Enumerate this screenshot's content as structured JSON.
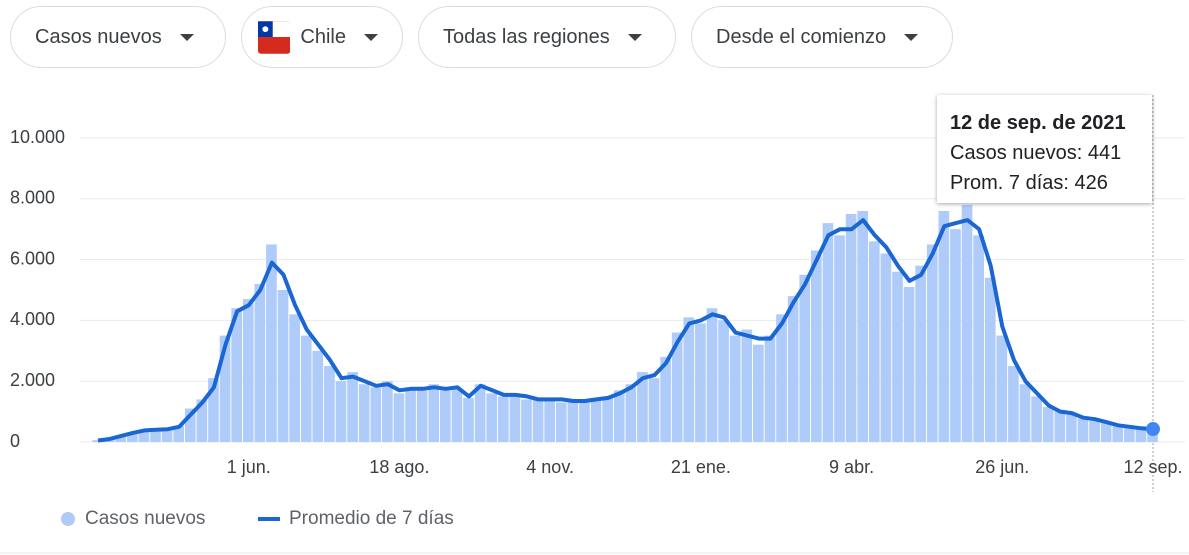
{
  "controls": [
    "Casos nuevos",
    "Chile",
    "Todas las regiones",
    "Desde el comienzo"
  ],
  "chart_data": {
    "type": "bar+line",
    "categories": [
      null,
      null,
      null,
      null,
      null,
      null,
      null,
      null,
      null,
      null,
      null,
      null,
      null,
      "1 jun.",
      null,
      null,
      null,
      null,
      null,
      null,
      null,
      null,
      null,
      null,
      null,
      null,
      "18 ago.",
      null,
      null,
      null,
      null,
      null,
      null,
      null,
      null,
      null,
      null,
      null,
      null,
      "4 nov.",
      null,
      null,
      null,
      null,
      null,
      null,
      null,
      null,
      null,
      null,
      null,
      null,
      "21 ene.",
      null,
      null,
      null,
      null,
      null,
      null,
      null,
      null,
      null,
      null,
      null,
      null,
      "9 abr.",
      null,
      null,
      null,
      null,
      null,
      null,
      null,
      null,
      null,
      null,
      null,
      null,
      "26 jun.",
      null,
      null,
      null,
      null,
      null,
      null,
      null,
      null,
      null,
      null,
      null,
      null,
      "12 sep."
    ],
    "series": [
      {
        "name": "Casos nuevos",
        "color": "#aecbfa",
        "values": [
          60,
          120,
          230,
          310,
          400,
          380,
          450,
          540,
          1100,
          1400,
          2100,
          3500,
          4400,
          4700,
          5200,
          6500,
          5000,
          4200,
          3500,
          3000,
          2500,
          2000,
          2300,
          1900,
          1800,
          2000,
          1600,
          1800,
          1700,
          1900,
          1700,
          1750,
          1450,
          1900,
          1600,
          1500,
          1600,
          1400,
          1450,
          1350,
          1300,
          1400,
          1300,
          1450,
          1500,
          1700,
          1900,
          2300,
          2100,
          2800,
          3600,
          4100,
          3900,
          4400,
          4000,
          3500,
          3700,
          3200,
          3500,
          4200,
          4800,
          5500,
          6300,
          7200,
          6800,
          7500,
          7600,
          6600,
          6200,
          5600,
          5100,
          5800,
          6500,
          7600,
          7000,
          7800,
          6800,
          5400,
          3500,
          2500,
          1900,
          1500,
          1150,
          1050,
          900,
          780,
          700,
          620,
          520,
          480,
          430,
          441
        ]
      },
      {
        "name": "Promedio de 7 días",
        "color": "#1a66d2",
        "values": [
          50,
          100,
          200,
          300,
          380,
          400,
          420,
          500,
          900,
          1300,
          1800,
          3200,
          4300,
          4500,
          5000,
          5900,
          5500,
          4500,
          3700,
          3200,
          2700,
          2100,
          2150,
          2000,
          1850,
          1900,
          1700,
          1750,
          1750,
          1800,
          1750,
          1800,
          1500,
          1850,
          1700,
          1550,
          1550,
          1500,
          1400,
          1400,
          1400,
          1350,
          1350,
          1400,
          1450,
          1600,
          1800,
          2100,
          2200,
          2600,
          3300,
          3900,
          4000,
          4200,
          4100,
          3600,
          3500,
          3400,
          3400,
          3900,
          4600,
          5200,
          6000,
          6800,
          7000,
          7000,
          7300,
          6800,
          6400,
          5800,
          5300,
          5500,
          6200,
          7100,
          7200,
          7300,
          7000,
          5800,
          3800,
          2700,
          2000,
          1600,
          1200,
          1000,
          950,
          800,
          750,
          650,
          550,
          500,
          450,
          426
        ]
      }
    ],
    "ylim": [
      0,
      10000
    ],
    "yticks": [
      0,
      {
        "value": 2000,
        "label": "2.000"
      },
      {
        "value": 4000,
        "label": "4.000"
      },
      {
        "value": 6000,
        "label": "6.000"
      },
      {
        "value": 8000,
        "label": "8.000"
      },
      {
        "value": 10000,
        "label": "10.000"
      }
    ],
    "grid": true,
    "tooltip": {
      "title": "12 de sep. de 2021",
      "labels": [
        "Casos nuevos:",
        "Prom. 7 días:"
      ]
    }
  }
}
